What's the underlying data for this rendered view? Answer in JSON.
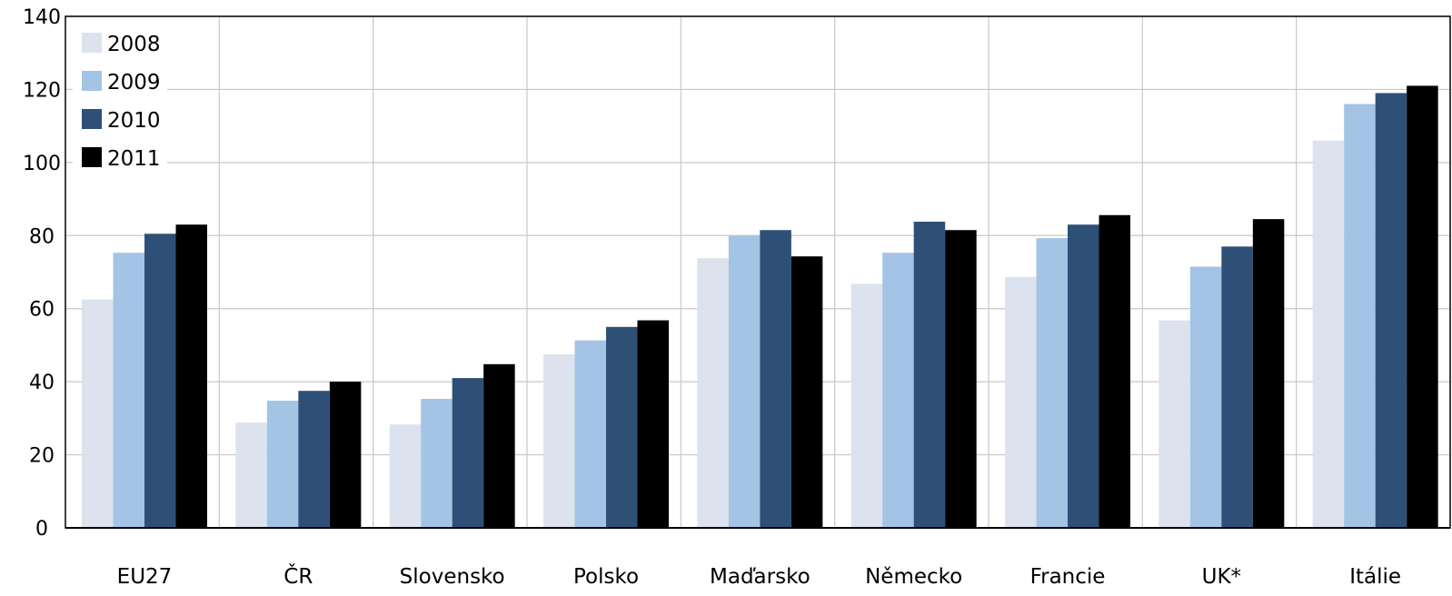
{
  "chart_data": {
    "type": "bar",
    "title": "",
    "xlabel": "",
    "ylabel": "",
    "ylim": [
      0,
      140
    ],
    "yticks": [
      0,
      20,
      40,
      60,
      80,
      100,
      120,
      140
    ],
    "grid": true,
    "legend_position": "top-left",
    "categories": [
      "EU27",
      "ČR",
      "Slovensko",
      "Polsko",
      "Maďarsko",
      "Německo",
      "Francie",
      "UK*",
      "Itálie"
    ],
    "series": [
      {
        "name": "2008",
        "color": "#dce3ee",
        "values": [
          62.5,
          28.8,
          28.3,
          47.5,
          73.8,
          66.8,
          68.7,
          56.8,
          106
        ]
      },
      {
        "name": "2009",
        "color": "#a3c4e4",
        "values": [
          75.3,
          34.8,
          35.3,
          51.3,
          80.0,
          75.3,
          79.3,
          71.5,
          116
        ]
      },
      {
        "name": "2010",
        "color": "#2f5076",
        "values": [
          80.5,
          37.5,
          41.0,
          55.0,
          81.5,
          83.8,
          83.0,
          77.0,
          119
        ]
      },
      {
        "name": "2011",
        "color": "#000000",
        "values": [
          83.0,
          40.0,
          44.8,
          56.8,
          74.3,
          81.5,
          85.6,
          84.5,
          121
        ]
      }
    ]
  }
}
